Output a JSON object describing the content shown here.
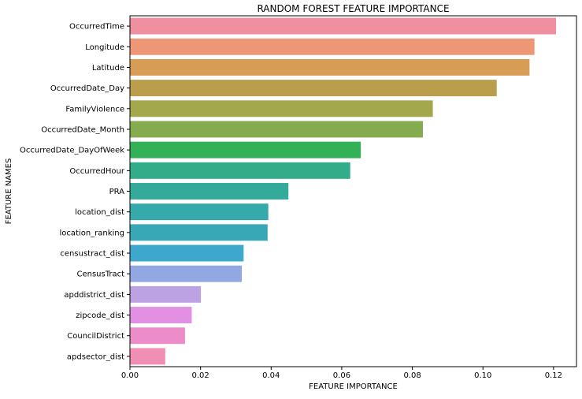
{
  "chart_data": {
    "type": "bar",
    "orientation": "horizontal",
    "title": "RANDOM FOREST FEATURE IMPORTANCE",
    "xlabel": "FEATURE IMPORTANCE",
    "ylabel": "FEATURE NAMES",
    "xlim": [
      0,
      0.1265
    ],
    "xticks": [
      "0.00",
      "0.02",
      "0.04",
      "0.06",
      "0.08",
      "0.10",
      "0.12"
    ],
    "grid": false,
    "legend": "none",
    "categories": [
      "OccurredTime",
      "Longitude",
      "Latitude",
      "OccurredDate_Day",
      "FamilyViolence",
      "OccurredDate_Month",
      "OccurredDate_DayOfWeek",
      "OccurredHour",
      "PRA",
      "location_dist",
      "location_ranking",
      "censustract_dist",
      "CensusTract",
      "apddistrict_dist",
      "zipcode_dist",
      "CouncilDistrict",
      "apdsector_dist"
    ],
    "values": [
      0.1207,
      0.1146,
      0.1132,
      0.1039,
      0.0858,
      0.083,
      0.0654,
      0.0624,
      0.0449,
      0.0392,
      0.039,
      0.0322,
      0.0317,
      0.0201,
      0.0175,
      0.0156,
      0.01
    ],
    "colors": [
      "#f08fa0",
      "#ed9777",
      "#d89d55",
      "#ba9e4c",
      "#a2a84b",
      "#85ab4f",
      "#33b156",
      "#33ac89",
      "#34ab9a",
      "#36aaaa",
      "#38a8b7",
      "#3da7cd",
      "#91a8e2",
      "#bca2e3",
      "#e290e2",
      "#ec8dca",
      "#f18eb3"
    ]
  }
}
